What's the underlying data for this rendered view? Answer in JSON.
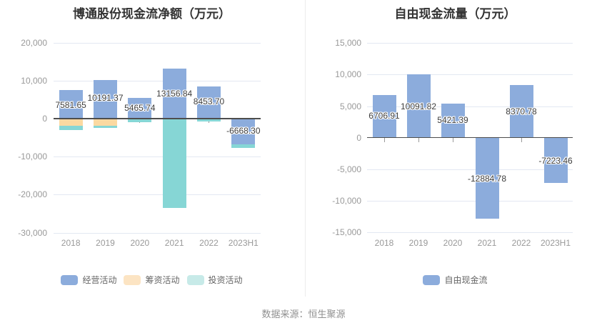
{
  "source": {
    "text": "数据来源：恒生聚源"
  },
  "style": {
    "bar_blue": "#8CACDC",
    "bar_orange": "#FBD9A1",
    "bar_teal": "#86D6D5",
    "legend_orange": "#FCE4C3",
    "legend_teal": "#C7EAE8",
    "grid_line": "#E3E8F2",
    "zero_axis": "#4D4D4D",
    "axis_text": "#999999",
    "data_label_text": "#3D3D3D",
    "title_text": "#333333",
    "legend_text": "#666666",
    "source_text": "#909090"
  },
  "chart_data": [
    {
      "type": "bar",
      "stacked": true,
      "title": "博通股份现金流净额（万元）",
      "categories": [
        "2018",
        "2019",
        "2020",
        "2021",
        "2022",
        "2023H1"
      ],
      "y_axis": {
        "min": -30000,
        "max": 20000,
        "tick_values": [
          20000,
          10000,
          0,
          -10000,
          -20000,
          -30000
        ],
        "tick_labels": [
          "20,000",
          "10,000",
          "0",
          "-10,000",
          "-20,000",
          "-30,000"
        ]
      },
      "grid": true,
      "legend_position": "bottom",
      "series": [
        {
          "name": "经营活动",
          "color": "#8CACDC",
          "values": [
            7581.65,
            10191.37,
            5465.74,
            13156.84,
            8453.7,
            -6668.3
          ]
        },
        {
          "name": "筹资活动",
          "color": "#FBD9A1",
          "values": [
            -1900,
            -1800,
            0,
            0,
            0,
            0
          ]
        },
        {
          "name": "投资活动",
          "color": "#86D6D5",
          "values": [
            -1200,
            -600,
            -1000,
            -23400,
            -700,
            -1000
          ]
        }
      ],
      "data_labels": [
        "7581.65",
        "10191.37",
        "5465.74",
        "13156.84",
        "8453.70",
        "-6668.30"
      ],
      "legend": [
        {
          "label": "经营活动",
          "color": "#8CACDC"
        },
        {
          "label": "筹资活动",
          "color": "#FCE4C3"
        },
        {
          "label": "投资活动",
          "color": "#C7EAE8"
        }
      ]
    },
    {
      "type": "bar",
      "stacked": false,
      "title": "自由现金流量（万元）",
      "categories": [
        "2018",
        "2019",
        "2020",
        "2021",
        "2022",
        "2023H1"
      ],
      "y_axis": {
        "min": -15000,
        "max": 15000,
        "tick_values": [
          15000,
          10000,
          5000,
          0,
          -5000,
          -10000,
          -15000
        ],
        "tick_labels": [
          "15,000",
          "10,000",
          "5,000",
          "0",
          "-5,000",
          "-10,000",
          "-15,000"
        ]
      },
      "grid": true,
      "legend_position": "bottom",
      "series": [
        {
          "name": "自由现金流",
          "color": "#8CACDC",
          "values": [
            6706.91,
            10091.82,
            5421.39,
            -12884.78,
            8370.78,
            -7223.46
          ]
        }
      ],
      "data_labels": [
        "6706.91",
        "10091.82",
        "5421.39",
        "-12884.78",
        "8370.78",
        "-7223.46"
      ],
      "legend": [
        {
          "label": "自由现金流",
          "color": "#8CACDC"
        }
      ]
    }
  ]
}
